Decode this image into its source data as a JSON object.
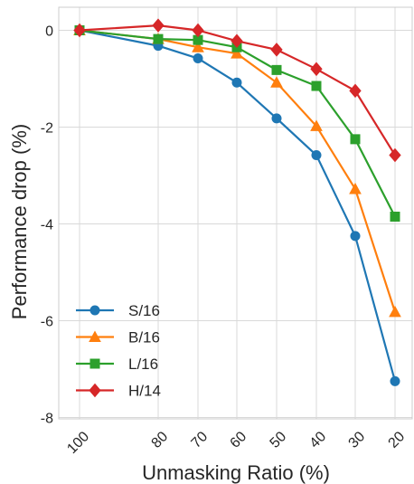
{
  "chart_data": {
    "type": "line",
    "xlabel": "Unmasking Ratio (%)",
    "ylabel": "Performance drop (%)",
    "categories": [
      "100",
      "80",
      "70",
      "60",
      "50",
      "40",
      "30",
      "20"
    ],
    "ylim": [
      -8,
      0.5
    ],
    "yticks": [
      0,
      -2,
      -4,
      -6,
      -8
    ],
    "grid": true,
    "legend_position": "lower-left",
    "series": [
      {
        "name": "S/16",
        "color": "#1f77b4",
        "marker": "circle",
        "values": [
          0,
          -0.32,
          -0.58,
          -1.08,
          -1.82,
          -2.58,
          -4.25,
          -7.25
        ]
      },
      {
        "name": "B/16",
        "color": "#ff7f0e",
        "marker": "triangle",
        "values": [
          0,
          -0.18,
          -0.35,
          -0.48,
          -1.08,
          -1.98,
          -3.28,
          -5.82
        ]
      },
      {
        "name": "L/16",
        "color": "#2ca02c",
        "marker": "square",
        "values": [
          0,
          -0.18,
          -0.2,
          -0.35,
          -0.82,
          -1.15,
          -2.25,
          -3.85
        ]
      },
      {
        "name": "H/14",
        "color": "#d62728",
        "marker": "diamond",
        "values": [
          0,
          0.1,
          0.0,
          -0.22,
          -0.4,
          -0.8,
          -1.25,
          -2.58
        ]
      }
    ]
  }
}
